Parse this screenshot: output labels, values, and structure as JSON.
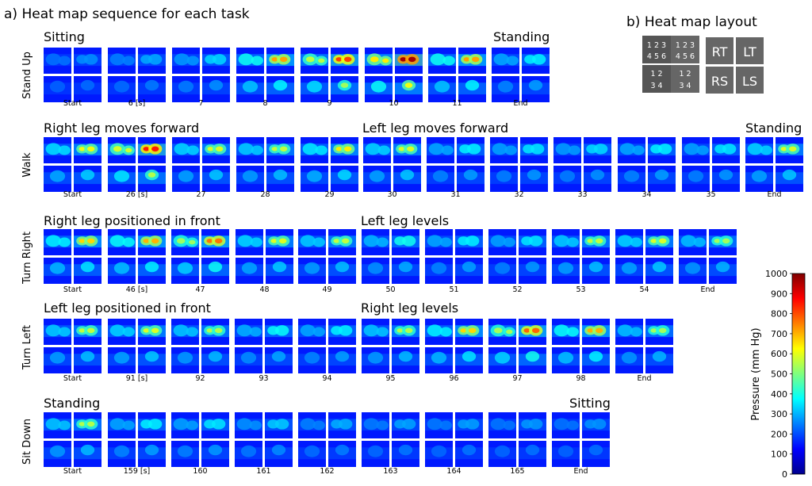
{
  "titles": {
    "part_a": "a) Heat map sequence for each task",
    "part_b": "b) Heat map layout"
  },
  "layout_legend": {
    "thigh_numbers": "1 2 3 4 5 6",
    "shank_numbers": "1 2 3 4",
    "labels": [
      "RT",
      "LT",
      "RS",
      "LS"
    ]
  },
  "colorbar": {
    "label": "Pressure (mm Hg)",
    "ticks": [
      0,
      100,
      200,
      300,
      400,
      500,
      600,
      700,
      800,
      900,
      1000
    ],
    "min": 0,
    "max": 1000
  },
  "chart_data": {
    "type": "heatmap",
    "title": "Heat map sequence for each task",
    "tasks": [
      {
        "name": "Stand Up",
        "phases": [
          {
            "label": "Sitting",
            "start": 0
          },
          {
            "label": "Standing",
            "start": 7
          }
        ],
        "frames": [
          "Start",
          "6 [s]",
          "7",
          "8",
          "9",
          "10",
          "11",
          "End"
        ],
        "peak_pressure": [
          120,
          170,
          250,
          620,
          750,
          950,
          620,
          300
        ]
      },
      {
        "name": "Walk",
        "phases": [
          {
            "label": "Right leg moves forward",
            "start": 0
          },
          {
            "label": "Left leg moves forward",
            "start": 5
          },
          {
            "label": "Standing",
            "start": 11
          }
        ],
        "frames": [
          "Start",
          "26 [s]",
          "27",
          "28",
          "29",
          "30",
          "31",
          "32",
          "33",
          "34",
          "35",
          "End"
        ],
        "peak_pressure": [
          480,
          800,
          450,
          420,
          520,
          450,
          300,
          280,
          260,
          300,
          280,
          450
        ]
      },
      {
        "name": "Turn Right",
        "phases": [
          {
            "label": "Right leg positioned in front",
            "start": 0
          },
          {
            "label": "Left leg levels",
            "start": 5
          }
        ],
        "frames": [
          "Start",
          "46 [s]",
          "47",
          "48",
          "49",
          "50",
          "51",
          "52",
          "53",
          "54",
          "End"
        ],
        "peak_pressure": [
          550,
          600,
          680,
          460,
          420,
          350,
          300,
          280,
          420,
          450,
          380
        ]
      },
      {
        "name": "Turn Left",
        "phases": [
          {
            "label": "Left leg positioned in front",
            "start": 0
          },
          {
            "label": "Right leg levels",
            "start": 5
          }
        ],
        "frames": [
          "Start",
          "91 [s]",
          "92",
          "93",
          "94",
          "95",
          "96",
          "97",
          "98",
          "End"
        ],
        "peak_pressure": [
          420,
          450,
          400,
          330,
          300,
          400,
          550,
          700,
          600,
          380
        ]
      },
      {
        "name": "Sit Down",
        "phases": [
          {
            "label": "Standing",
            "start": 0
          },
          {
            "label": "Sitting",
            "start": 8
          }
        ],
        "frames": [
          "Start",
          "159 [s]",
          "160",
          "161",
          "162",
          "163",
          "164",
          "165",
          "End"
        ],
        "peak_pressure": [
          400,
          300,
          280,
          230,
          180,
          160,
          150,
          140,
          130
        ]
      }
    ],
    "xlabel": "",
    "ylabel": "",
    "grid": false,
    "legend_position": "right"
  }
}
